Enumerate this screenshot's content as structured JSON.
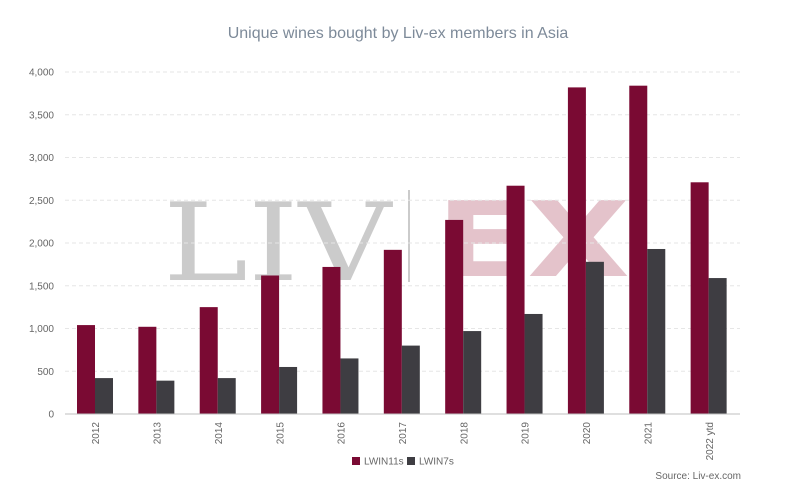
{
  "chart_data": {
    "type": "bar",
    "title": "Unique wines bought by Liv-ex members in Asia",
    "categories": [
      "2012",
      "2013",
      "2014",
      "2015",
      "2016",
      "2017",
      "2018",
      "2019",
      "2020",
      "2021",
      "2022 ytd"
    ],
    "series": [
      {
        "name": "LWIN11s",
        "color": "#7a0a33",
        "values": [
          1040,
          1020,
          1250,
          1620,
          1720,
          1920,
          2270,
          2670,
          3820,
          3840,
          2710
        ]
      },
      {
        "name": "LWIN7s",
        "color": "#3e3d42",
        "values": [
          420,
          390,
          420,
          550,
          650,
          800,
          970,
          1170,
          1780,
          1930,
          1590
        ]
      }
    ],
    "y_ticks": [
      "0",
      "500",
      "1,000",
      "1,500",
      "2,000",
      "2,500",
      "3,000",
      "3,500",
      "4,000"
    ],
    "ylim": [
      0,
      4000
    ],
    "grid": true,
    "legend_position": "bottom-center",
    "source": "Source: Liv-ex.com",
    "watermark": {
      "left_text": "LIV",
      "right_text": "EX",
      "left_color": "#cbcbcb",
      "right_color": "#e4c3cb"
    }
  }
}
